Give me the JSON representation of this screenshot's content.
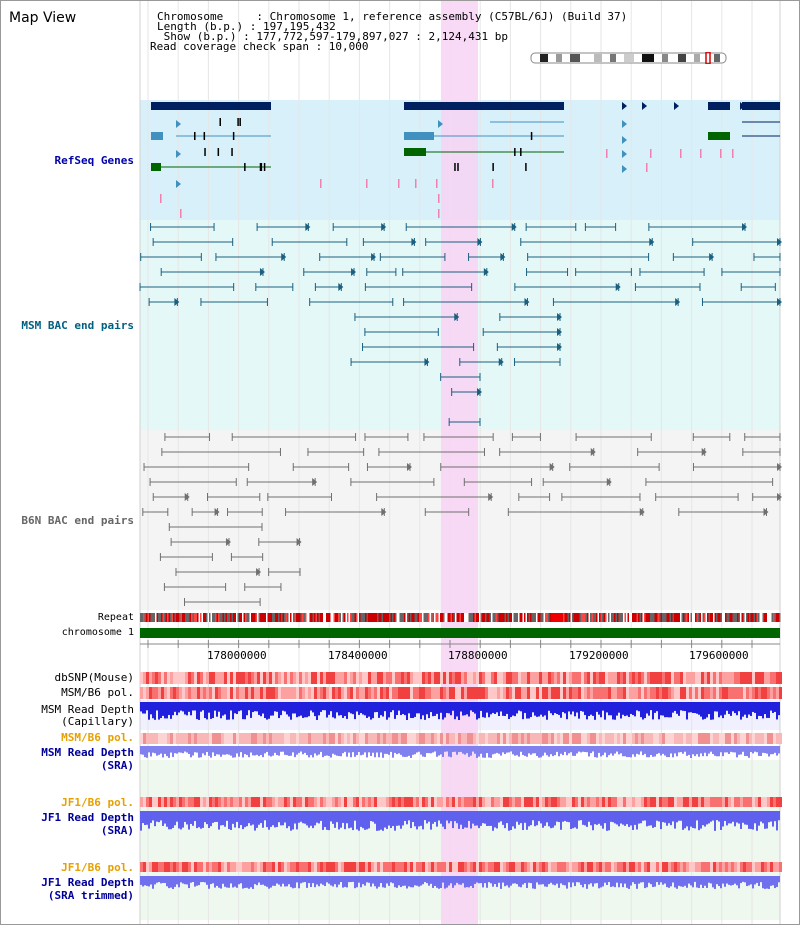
{
  "title": "Map View",
  "header": {
    "lines": [
      "Chromosome     : Chromosome 1, reference assembly (C57BL/6J) (Build 37)",
      "Length (b.p.) : 197,195,432",
      " Show (b.p.) : 177,772,597-179,897,027 : 2,124,431 bp",
      "Read coverage check span : 10,000"
    ]
  },
  "tracks": {
    "refseq": "RefSeq Genes",
    "msm_bac": "MSM BAC end pairs",
    "b6n_bac": "B6N BAC end pairs",
    "repeat": "Repeat",
    "chromosome": "chromosome 1",
    "dbsnp": "dbSNP(Mouse)",
    "msm_b6_pol": "MSM/B6 pol.",
    "msm_depth_cap_1": "MSM Read Depth",
    "msm_depth_cap_2": "(Capillary)",
    "msm_b6_pol_2": "MSM/B6 pol.",
    "msm_depth_sra_1": "MSM Read Depth",
    "msm_depth_sra_2": "(SRA)",
    "jf1_b6_pol": "JF1/B6 pol.",
    "jf1_depth_sra_1": "JF1 Read Depth",
    "jf1_depth_sra_2": "(SRA)",
    "jf1_b6_pol_2": "JF1/B6 pol.",
    "jf1_depth_trim_1": "JF1 Read Depth",
    "jf1_depth_trim_2": "(SRA trimmed)"
  },
  "axis": {
    "ticks": [
      "178000000",
      "178400000",
      "178800000",
      "179200000",
      "179600000"
    ]
  },
  "colors": {
    "refseq_label": "#0000aa",
    "msm_label": "#006080",
    "b6n_label": "#666666",
    "orange_label": "#e8a000",
    "navy_label": "#000099",
    "highlight": "#f8d4f4",
    "gene_dark": "#002060",
    "gene_mid": "#4090c0",
    "gene_green": "#006400",
    "bac_msm": "#1c6080",
    "bac_b6n": "#707070"
  }
}
